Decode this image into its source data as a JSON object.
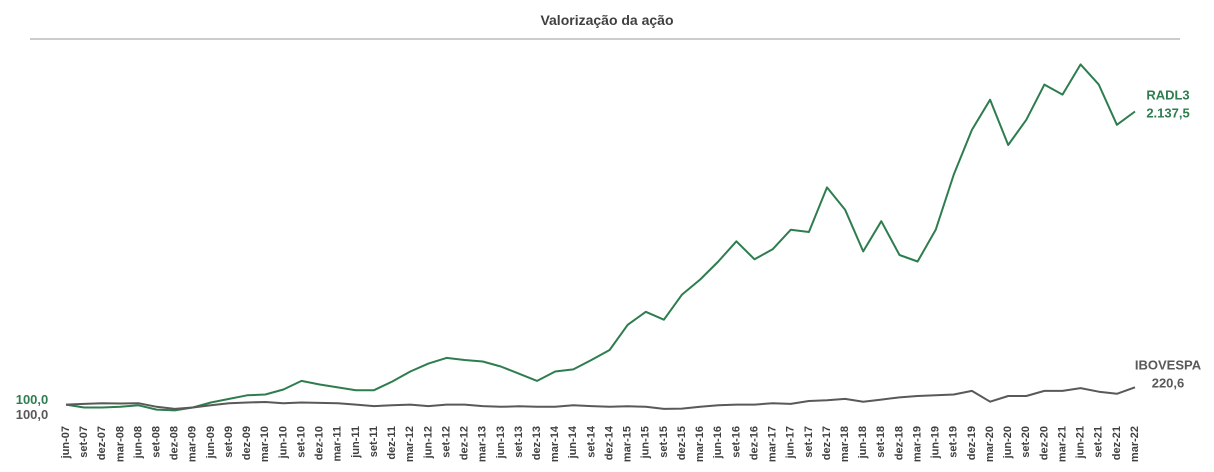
{
  "chart_data": {
    "type": "line",
    "title": "Valorização da ação",
    "categories": [
      "jun-07",
      "set-07",
      "dez-07",
      "mar-08",
      "jun-08",
      "set-08",
      "dez-08",
      "mar-09",
      "jun-09",
      "set-09",
      "dez-09",
      "mar-10",
      "jun-10",
      "set-10",
      "dez-10",
      "mar-11",
      "jun-11",
      "set-11",
      "dez-11",
      "mar-12",
      "jun-12",
      "set-12",
      "dez-12",
      "mar-13",
      "jun-13",
      "set-13",
      "dez-13",
      "mar-14",
      "jun-14",
      "set-14",
      "dez-14",
      "mar-15",
      "jun-15",
      "set-15",
      "dez-15",
      "mar-16",
      "jun-16",
      "set-16",
      "dez-16",
      "mar-17",
      "jun-17",
      "set-17",
      "dez-17",
      "mar-18",
      "jun-18",
      "set-18",
      "dez-18",
      "mar-19",
      "jun-19",
      "set-19",
      "dez-19",
      "mar-20",
      "jun-20",
      "set-20",
      "dez-20",
      "mar-21",
      "jun-21",
      "set-21",
      "dez-21",
      "mar-22"
    ],
    "ylim": [
      0,
      2600
    ],
    "series": [
      {
        "name": "RADL3",
        "color": "#2e7d4f",
        "values": [
          100,
          80,
          80,
          85,
          95,
          65,
          60,
          80,
          115,
          140,
          165,
          170,
          205,
          265,
          240,
          220,
          200,
          200,
          260,
          330,
          385,
          425,
          410,
          400,
          365,
          315,
          265,
          330,
          345,
          410,
          480,
          655,
          745,
          690,
          865,
          970,
          1095,
          1235,
          1110,
          1180,
          1315,
          1300,
          1610,
          1455,
          1165,
          1375,
          1140,
          1095,
          1315,
          1700,
          2010,
          2220,
          1905,
          2080,
          2325,
          2255,
          2465,
          2325,
          2045,
          2137.5
        ],
        "value_labels": [
          "100,0",
          null,
          null,
          null,
          null,
          null,
          null,
          null,
          null,
          null,
          null,
          null,
          null,
          null,
          null,
          null,
          null,
          null,
          null,
          null,
          null,
          null,
          null,
          null,
          null,
          null,
          null,
          null,
          null,
          null,
          null,
          null,
          null,
          null,
          null,
          null,
          null,
          null,
          null,
          null,
          null,
          null,
          null,
          null,
          null,
          null,
          null,
          null,
          null,
          null,
          null,
          null,
          null,
          null,
          null,
          null,
          null,
          null,
          null,
          "2.137,5"
        ]
      },
      {
        "name": "IBOVESPA",
        "color": "#595959",
        "values": [
          100,
          105,
          110,
          108,
          110,
          85,
          70,
          80,
          95,
          110,
          115,
          118,
          110,
          115,
          112,
          110,
          100,
          90,
          95,
          100,
          90,
          100,
          100,
          90,
          85,
          88,
          85,
          85,
          95,
          90,
          85,
          88,
          85,
          70,
          72,
          85,
          95,
          100,
          100,
          110,
          105,
          125,
          130,
          140,
          120,
          135,
          150,
          160,
          165,
          170,
          195,
          120,
          160,
          160,
          195,
          195,
          215,
          190,
          175,
          220.6
        ],
        "value_labels": [
          "100,0",
          null,
          null,
          null,
          null,
          null,
          null,
          null,
          null,
          null,
          null,
          null,
          null,
          null,
          null,
          null,
          null,
          null,
          null,
          null,
          null,
          null,
          null,
          null,
          null,
          null,
          null,
          null,
          null,
          null,
          null,
          null,
          null,
          null,
          null,
          null,
          null,
          null,
          null,
          null,
          null,
          null,
          null,
          null,
          null,
          null,
          null,
          null,
          null,
          null,
          null,
          null,
          null,
          null,
          null,
          null,
          null,
          null,
          null,
          "220,6"
        ]
      }
    ]
  }
}
